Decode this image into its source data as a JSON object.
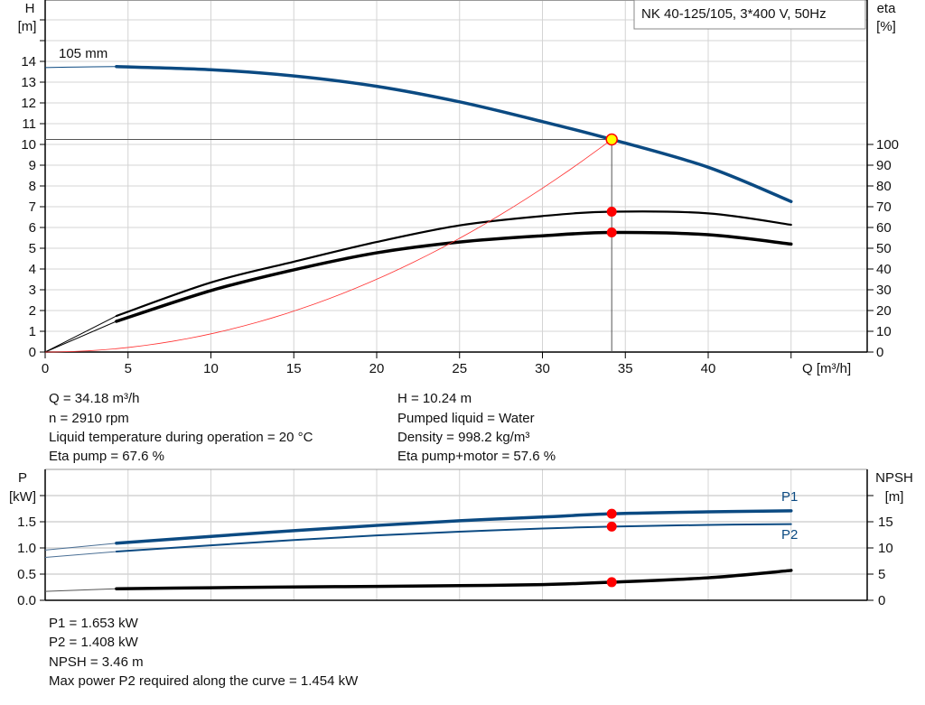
{
  "title_box": "NK 40-125/105, 3*400 V, 50Hz",
  "chart_data": [
    {
      "type": "line",
      "name": "performance",
      "xlabel": "Q [m³/h]",
      "ylabel_left": [
        "H",
        "[m]"
      ],
      "ylabel_right": [
        "eta",
        "[%]"
      ],
      "xlim": [
        0,
        45
      ],
      "ylim_left": [
        0,
        17
      ],
      "ylim_right": [
        0,
        100
      ],
      "x_ticks": [
        "0",
        "5",
        "10",
        "15",
        "20",
        "25",
        "30",
        "35",
        "40"
      ],
      "y_left_ticks": [
        "0",
        "1",
        "2",
        "3",
        "4",
        "5",
        "6",
        "7",
        "8",
        "9",
        "10",
        "11",
        "12",
        "13",
        "14"
      ],
      "y_right_ticks": [
        "0",
        "10",
        "20",
        "30",
        "40",
        "50",
        "60",
        "70",
        "80",
        "90",
        "100"
      ],
      "grid": true,
      "curve_label": "105 mm",
      "series": [
        {
          "key": "H",
          "axis": "left",
          "color": "#0b4a82",
          "thin_points": [
            [
              0,
              13.7
            ],
            [
              2,
              13.73
            ],
            [
              4.3,
              13.75
            ]
          ],
          "points": [
            [
              4.3,
              13.75
            ],
            [
              10,
              13.6
            ],
            [
              15,
              13.3
            ],
            [
              20,
              12.8
            ],
            [
              25,
              12.05
            ],
            [
              30,
              11.1
            ],
            [
              34.18,
              10.24
            ],
            [
              40,
              8.9
            ],
            [
              45,
              7.25
            ]
          ]
        },
        {
          "key": "eta_pump",
          "axis": "right",
          "color": "#000000",
          "thin_points": [
            [
              0,
              0
            ],
            [
              4.3,
              17.4
            ]
          ],
          "points": [
            [
              4.3,
              17.4
            ],
            [
              10,
              33.5
            ],
            [
              15,
              43.5
            ],
            [
              20,
              53
            ],
            [
              25,
              61
            ],
            [
              30,
              65.5
            ],
            [
              34.18,
              67.6
            ],
            [
              40,
              66.8
            ],
            [
              45,
              61.3
            ]
          ]
        },
        {
          "key": "eta_pump_motor",
          "axis": "right",
          "color": "#000000",
          "thin_points": [
            [
              0,
              0
            ],
            [
              4.3,
              14.8
            ]
          ],
          "points": [
            [
              4.3,
              14.8
            ],
            [
              10,
              29.6
            ],
            [
              15,
              39.6
            ],
            [
              20,
              47.8
            ],
            [
              25,
              53
            ],
            [
              30,
              56
            ],
            [
              34.18,
              57.6
            ],
            [
              40,
              56.5
            ],
            [
              45,
              52
            ]
          ]
        },
        {
          "key": "system_curve",
          "axis": "left",
          "color": "#ff3030",
          "type": "parabola_through_duty"
        }
      ],
      "duty_point": {
        "Q": 34.18,
        "H": 10.24,
        "eta_pump": 67.6,
        "eta_pump_motor": 57.6
      }
    },
    {
      "type": "line",
      "name": "power_npsh",
      "ylabel_left": [
        "P",
        "[kW]"
      ],
      "ylabel_right": [
        "NPSH",
        "[m]"
      ],
      "xlim": [
        0,
        45
      ],
      "ylim_left": [
        0,
        2.5
      ],
      "ylim_right": [
        0,
        25
      ],
      "y_left_ticks": [
        "0.0",
        "0.5",
        "1.0",
        "1.5"
      ],
      "y_right_ticks": [
        "0",
        "5",
        "10",
        "15"
      ],
      "grid": true,
      "series": [
        {
          "key": "P1",
          "name": "P1",
          "axis": "left",
          "color": "#0b4a82",
          "thin_points": [
            [
              0,
              0.96
            ],
            [
              4.3,
              1.09
            ]
          ],
          "points": [
            [
              4.3,
              1.09
            ],
            [
              10,
              1.22
            ],
            [
              15,
              1.33
            ],
            [
              20,
              1.43
            ],
            [
              25,
              1.52
            ],
            [
              30,
              1.59
            ],
            [
              34.18,
              1.653
            ],
            [
              40,
              1.69
            ],
            [
              45,
              1.71
            ]
          ]
        },
        {
          "key": "P2",
          "name": "P2",
          "axis": "left",
          "color": "#0b4a82",
          "thin_points": [
            [
              0,
              0.82
            ],
            [
              4.3,
              0.93
            ]
          ],
          "points": [
            [
              4.3,
              0.93
            ],
            [
              10,
              1.05
            ],
            [
              15,
              1.15
            ],
            [
              20,
              1.24
            ],
            [
              25,
              1.31
            ],
            [
              30,
              1.37
            ],
            [
              34.18,
              1.408
            ],
            [
              40,
              1.44
            ],
            [
              45,
              1.454
            ]
          ]
        },
        {
          "key": "NPSH",
          "axis": "right",
          "color": "#000000",
          "thin_points": [
            [
              0,
              1.7
            ],
            [
              4.3,
              2.2
            ]
          ],
          "points": [
            [
              4.3,
              2.2
            ],
            [
              10,
              2.4
            ],
            [
              15,
              2.55
            ],
            [
              20,
              2.65
            ],
            [
              25,
              2.8
            ],
            [
              30,
              3.0
            ],
            [
              34.18,
              3.46
            ],
            [
              40,
              4.3
            ],
            [
              45,
              5.7
            ]
          ]
        }
      ],
      "duty_point": {
        "Q": 34.18,
        "P1": 1.653,
        "P2": 1.408,
        "NPSH": 3.46
      }
    }
  ],
  "info_left": [
    "Q = 34.18 m³/h",
    "n = 2910 rpm",
    "Liquid temperature during operation = 20 °C",
    "Eta pump = 67.6 %"
  ],
  "info_right": [
    "H = 10.24 m",
    "Pumped liquid = Water",
    "Density = 998.2 kg/m³",
    "Eta pump+motor = 57.6 %"
  ],
  "info_bottom": [
    "P1 = 1.653 kW",
    "P2 = 1.408 kW",
    "NPSH = 3.46 m",
    "Max power P2 required along the curve = 1.454 kW"
  ],
  "colors": {
    "duty_fill": "#ffff00",
    "duty_stroke": "#ff0000",
    "marker": "#ff0000",
    "grid": "#d4d4d4"
  }
}
